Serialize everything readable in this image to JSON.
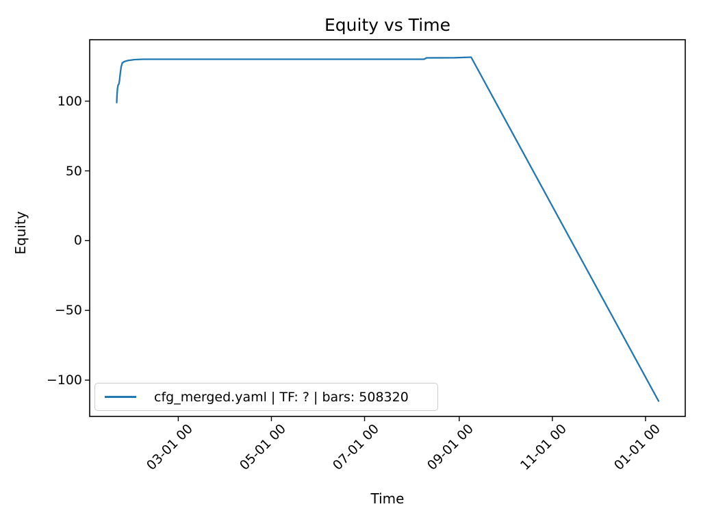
{
  "figure": {
    "title": "Equity vs Time",
    "xlabel": "Time",
    "ylabel": "Equity",
    "legend": {
      "label": "cfg_merged.yaml | TF: ? | bars: 508320",
      "line_color": "#1f77b4",
      "position": "lower left"
    }
  },
  "chart_data": {
    "type": "line",
    "title": "Equity vs Time",
    "xlabel": "Time",
    "ylabel": "Equity",
    "grid": false,
    "legend_entries": [
      "cfg_merged.yaml | TF: ? | bars: 508320"
    ],
    "legend_position": "lower left",
    "line_color": "#1f77b4",
    "x_unit": "days since 01-01 00:00",
    "xlim": [
      1,
      391
    ],
    "ylim": [
      -126,
      144
    ],
    "x_ticks": [
      {
        "day": 59,
        "label": "03-01 00"
      },
      {
        "day": 120,
        "label": "05-01 00"
      },
      {
        "day": 181,
        "label": "07-01 00"
      },
      {
        "day": 243,
        "label": "09-01 00"
      },
      {
        "day": 304,
        "label": "11-01 00"
      },
      {
        "day": 365,
        "label": "01-01 00"
      }
    ],
    "y_ticks": [
      {
        "value": 100,
        "label": "100"
      },
      {
        "value": 50,
        "label": "50"
      },
      {
        "value": 0,
        "label": "0"
      },
      {
        "value": -50,
        "label": "−50"
      },
      {
        "value": -100,
        "label": "−100"
      }
    ],
    "series": [
      {
        "name": "cfg_merged.yaml | TF: ? | bars: 508320",
        "points": [
          [
            18.7,
            99
          ],
          [
            18.9,
            104
          ],
          [
            19.2,
            109
          ],
          [
            19.6,
            111.5
          ],
          [
            20.2,
            112.5
          ],
          [
            20.5,
            114.5
          ],
          [
            21.0,
            119.5
          ],
          [
            21.6,
            124.5
          ],
          [
            22.3,
            127.3
          ],
          [
            23.6,
            128.3
          ],
          [
            26,
            129.1
          ],
          [
            30,
            129.7
          ],
          [
            36,
            130
          ],
          [
            80,
            130
          ],
          [
            140,
            130
          ],
          [
            200,
            130
          ],
          [
            220,
            130
          ],
          [
            221.5,
            131
          ],
          [
            240,
            131.1
          ],
          [
            250.8,
            131.5
          ],
          [
            373.5,
            -115
          ]
        ]
      }
    ]
  },
  "style": {
    "axis_color": "#000000",
    "background": "#ffffff"
  }
}
